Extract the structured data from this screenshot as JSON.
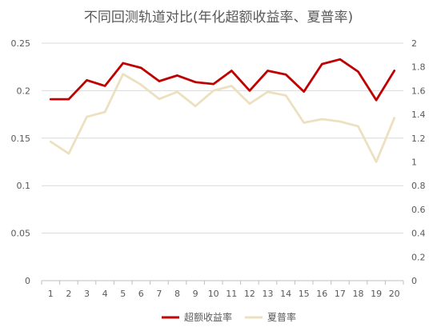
{
  "chart_data": {
    "type": "line",
    "title": "不同回测轨道对比(年化超额收益率、夏普率)",
    "categories": [
      "1",
      "2",
      "3",
      "4",
      "5",
      "6",
      "7",
      "8",
      "9",
      "10",
      "11",
      "12",
      "13",
      "14",
      "15",
      "16",
      "17",
      "18",
      "19",
      "20"
    ],
    "y_left": {
      "min": 0,
      "max": 0.25,
      "ticks": [
        "0",
        "0.05",
        "0.1",
        "0.15",
        "0.2",
        "0.25"
      ],
      "tick_values": [
        0,
        0.05,
        0.1,
        0.15,
        0.2,
        0.25
      ]
    },
    "y_right": {
      "min": 0,
      "max": 2,
      "ticks": [
        "0",
        "0.2",
        "0.4",
        "0.6",
        "0.8",
        "1",
        "1.2",
        "1.4",
        "1.6",
        "1.8",
        "2"
      ],
      "tick_values": [
        0,
        0.2,
        0.4,
        0.6,
        0.8,
        1,
        1.2,
        1.4,
        1.6,
        1.8,
        2
      ]
    },
    "grid": true,
    "legend_position": "bottom",
    "series": [
      {
        "name": "超额收益率",
        "axis": "left",
        "color": "#c00000",
        "values": [
          0.191,
          0.191,
          0.211,
          0.205,
          0.229,
          0.224,
          0.21,
          0.216,
          0.209,
          0.207,
          0.221,
          0.2,
          0.221,
          0.217,
          0.199,
          0.228,
          0.233,
          0.22,
          0.19,
          0.221
        ]
      },
      {
        "name": "夏普率",
        "axis": "right",
        "color": "#ede0c1",
        "values": [
          1.17,
          1.07,
          1.38,
          1.42,
          1.74,
          1.65,
          1.53,
          1.59,
          1.47,
          1.6,
          1.64,
          1.49,
          1.59,
          1.56,
          1.33,
          1.36,
          1.34,
          1.3,
          1.0,
          1.37
        ]
      }
    ]
  }
}
